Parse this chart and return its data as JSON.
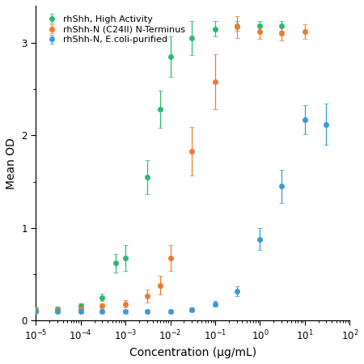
{
  "title": "",
  "xlabel": "Concentration (μg/mL)",
  "ylabel": "Mean OD",
  "xlim_log": [
    -5,
    2
  ],
  "ylim": [
    0,
    3.4
  ],
  "yticks": [
    0,
    1,
    2,
    3
  ],
  "legend_labels": [
    "rhShh, High Activity",
    "rhShh-N (C24II) N-Terminus",
    "rhShh-N, E.coli-purified"
  ],
  "colors": [
    "#2db870",
    "#f07830",
    "#3a9ad4"
  ],
  "series": [
    {
      "name": "rhShh, High Activity",
      "color": "#2db870",
      "x": [
        1e-05,
        3e-05,
        0.0001,
        0.0003,
        0.0006,
        0.001,
        0.003,
        0.006,
        0.01,
        0.03,
        0.1,
        0.3,
        1.0,
        3.0
      ],
      "y": [
        0.12,
        0.13,
        0.16,
        0.25,
        0.62,
        0.68,
        1.55,
        2.28,
        2.85,
        3.05,
        3.15,
        3.18,
        3.18,
        3.18
      ],
      "yerr": [
        0.02,
        0.02,
        0.03,
        0.04,
        0.1,
        0.14,
        0.18,
        0.2,
        0.22,
        0.18,
        0.08,
        0.05,
        0.05,
        0.05
      ],
      "ec50_log": -3.0
    },
    {
      "name": "rhShh-N (C24II) N-Terminus",
      "color": "#f07830",
      "x": [
        1e-05,
        3e-05,
        0.0001,
        0.0003,
        0.001,
        0.003,
        0.006,
        0.01,
        0.03,
        0.1,
        0.3,
        1.0,
        3.0,
        10.0
      ],
      "y": [
        0.12,
        0.12,
        0.13,
        0.16,
        0.18,
        0.27,
        0.38,
        0.68,
        1.83,
        2.58,
        3.17,
        3.12,
        3.1,
        3.12
      ],
      "yerr": [
        0.02,
        0.02,
        0.02,
        0.03,
        0.04,
        0.07,
        0.1,
        0.14,
        0.26,
        0.3,
        0.12,
        0.08,
        0.08,
        0.08
      ],
      "ec50_log": -1.75
    },
    {
      "name": "rhShh-N, E.coli-purified",
      "color": "#3a9ad4",
      "x": [
        1e-05,
        3e-05,
        0.0001,
        0.0003,
        0.001,
        0.003,
        0.01,
        0.03,
        0.1,
        0.3,
        1.0,
        3.0,
        10.0,
        30.0
      ],
      "y": [
        0.1,
        0.1,
        0.1,
        0.1,
        0.1,
        0.1,
        0.1,
        0.12,
        0.18,
        0.32,
        0.88,
        1.45,
        2.17,
        2.12
      ],
      "yerr": [
        0.02,
        0.02,
        0.02,
        0.02,
        0.02,
        0.02,
        0.02,
        0.02,
        0.03,
        0.05,
        0.12,
        0.18,
        0.16,
        0.22
      ],
      "ec50_log": 0.7
    }
  ],
  "background_color": "#ffffff"
}
